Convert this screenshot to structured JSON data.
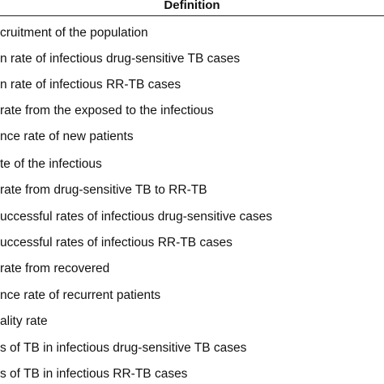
{
  "table": {
    "header": "Definition",
    "rows": [
      "cruitment of the population",
      "n rate of infectious drug-sensitive TB cases",
      "n rate of infectious RR-TB cases",
      "rate from the exposed to the infectious",
      "nce rate of new patients",
      "te of the infectious",
      "rate from drug-sensitive TB to RR-TB",
      "uccessful rates of infectious drug-sensitive cases",
      "uccessful rates of infectious RR-TB cases",
      "rate from recovered",
      "nce rate of recurrent patients",
      "ality rate",
      "s of TB in infectious drug-sensitive TB cases",
      "s of TB in infectious RR-TB cases"
    ]
  }
}
